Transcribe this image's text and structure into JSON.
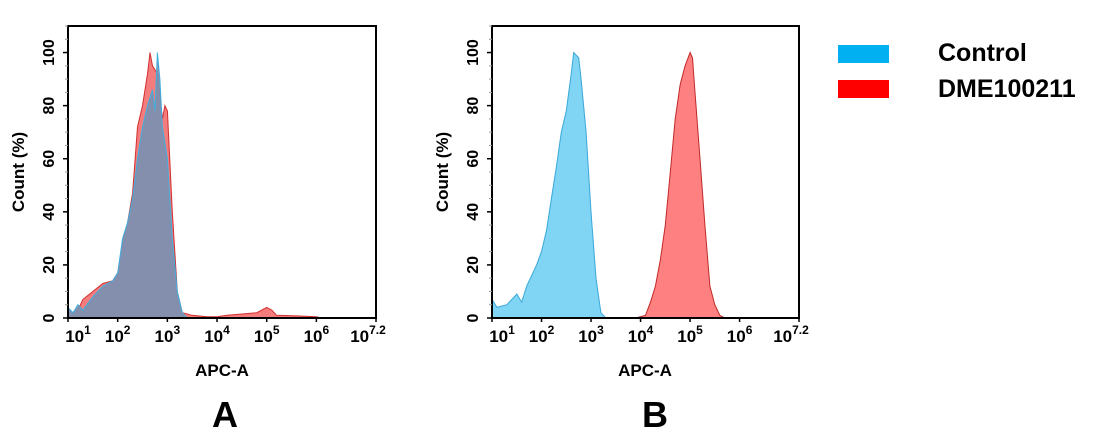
{
  "legend": {
    "placement": "right",
    "items": [
      {
        "label": "Control",
        "color": "#00b0f0"
      },
      {
        "label": "DME100211",
        "color": "#ff0000"
      }
    ]
  },
  "chart_data": [
    {
      "type": "area",
      "panel_label": "A",
      "xlabel": "APC-A",
      "ylabel": "Count  (%)",
      "xscale": "log",
      "xlim_log10": [
        1,
        7.2
      ],
      "xticks": [
        {
          "base": "10",
          "exp": "1"
        },
        {
          "base": "10",
          "exp": "2"
        },
        {
          "base": "10",
          "exp": "3"
        },
        {
          "base": "10",
          "exp": "4"
        },
        {
          "base": "10",
          "exp": "5"
        },
        {
          "base": "10",
          "exp": "6"
        },
        {
          "base": "10",
          "exp": "7.2"
        }
      ],
      "ylim": [
        0,
        110
      ],
      "yticks": [
        0,
        20,
        40,
        60,
        80,
        100
      ],
      "overlap_color": "#7d8fb0",
      "series": [
        {
          "name": "DME100211",
          "fill": "#f47c7c",
          "stroke": "#d23030",
          "x_log10": [
            1.0,
            1.2,
            1.3,
            1.5,
            1.7,
            1.9,
            2.0,
            2.05,
            2.1,
            2.2,
            2.3,
            2.4,
            2.5,
            2.6,
            2.65,
            2.7,
            2.8,
            2.9,
            2.95,
            3.0,
            3.1,
            3.2,
            3.3,
            3.5,
            3.8,
            4.0,
            4.2,
            4.5,
            4.8,
            5.0,
            5.1,
            5.2,
            5.6,
            6.0,
            6.1
          ],
          "y": [
            0,
            3,
            7,
            10,
            13,
            14,
            17,
            23,
            28,
            36,
            47,
            72,
            80,
            92,
            100,
            95,
            92,
            75,
            80,
            78,
            40,
            10,
            2,
            1,
            0.5,
            0.5,
            1,
            1.5,
            2,
            4,
            3,
            1,
            0.8,
            0.5,
            0
          ]
        },
        {
          "name": "Control",
          "fill": "#7d8fb0",
          "stroke": "#3fb0e0",
          "x_log10": [
            1.0,
            1.1,
            1.2,
            1.3,
            1.5,
            1.7,
            1.9,
            2.0,
            2.1,
            2.2,
            2.3,
            2.4,
            2.5,
            2.6,
            2.7,
            2.75,
            2.8,
            2.85,
            2.9,
            3.0,
            3.1,
            3.2,
            3.3,
            3.4
          ],
          "y": [
            4,
            2,
            5,
            3,
            8,
            12,
            14,
            17,
            30,
            36,
            45,
            60,
            72,
            80,
            86,
            78,
            100,
            90,
            72,
            60,
            30,
            10,
            2,
            0
          ]
        }
      ]
    },
    {
      "type": "area",
      "panel_label": "B",
      "xlabel": "APC-A",
      "ylabel": "Count  (%)",
      "xscale": "log",
      "xlim_log10": [
        1,
        7.2
      ],
      "xticks": [
        {
          "base": "10",
          "exp": "1"
        },
        {
          "base": "10",
          "exp": "2"
        },
        {
          "base": "10",
          "exp": "3"
        },
        {
          "base": "10",
          "exp": "4"
        },
        {
          "base": "10",
          "exp": "5"
        },
        {
          "base": "10",
          "exp": "6"
        },
        {
          "base": "10",
          "exp": "7.2"
        }
      ],
      "ylim": [
        0,
        110
      ],
      "yticks": [
        0,
        20,
        40,
        60,
        80,
        100
      ],
      "series": [
        {
          "name": "Control",
          "fill": "#80d4f4",
          "stroke": "#3aa8d8",
          "x_log10": [
            1.0,
            1.1,
            1.3,
            1.5,
            1.6,
            1.7,
            1.9,
            2.0,
            2.1,
            2.2,
            2.3,
            2.4,
            2.5,
            2.6,
            2.65,
            2.75,
            2.8,
            2.9,
            3.0,
            3.1,
            3.2,
            3.3
          ],
          "y": [
            7,
            4,
            5,
            9,
            6,
            12,
            20,
            25,
            33,
            45,
            57,
            70,
            78,
            92,
            100,
            98,
            90,
            70,
            40,
            15,
            2,
            0
          ]
        },
        {
          "name": "DME100211",
          "fill": "#ff8080",
          "stroke": "#c02828",
          "x_log10": [
            3.9,
            4.1,
            4.2,
            4.3,
            4.4,
            4.5,
            4.6,
            4.7,
            4.8,
            4.9,
            5.0,
            5.05,
            5.1,
            5.2,
            5.3,
            5.4,
            5.5,
            5.6,
            5.7
          ],
          "y": [
            0,
            1,
            6,
            12,
            22,
            35,
            55,
            75,
            88,
            95,
            100,
            98,
            85,
            60,
            35,
            12,
            5,
            1,
            0
          ]
        }
      ]
    }
  ]
}
